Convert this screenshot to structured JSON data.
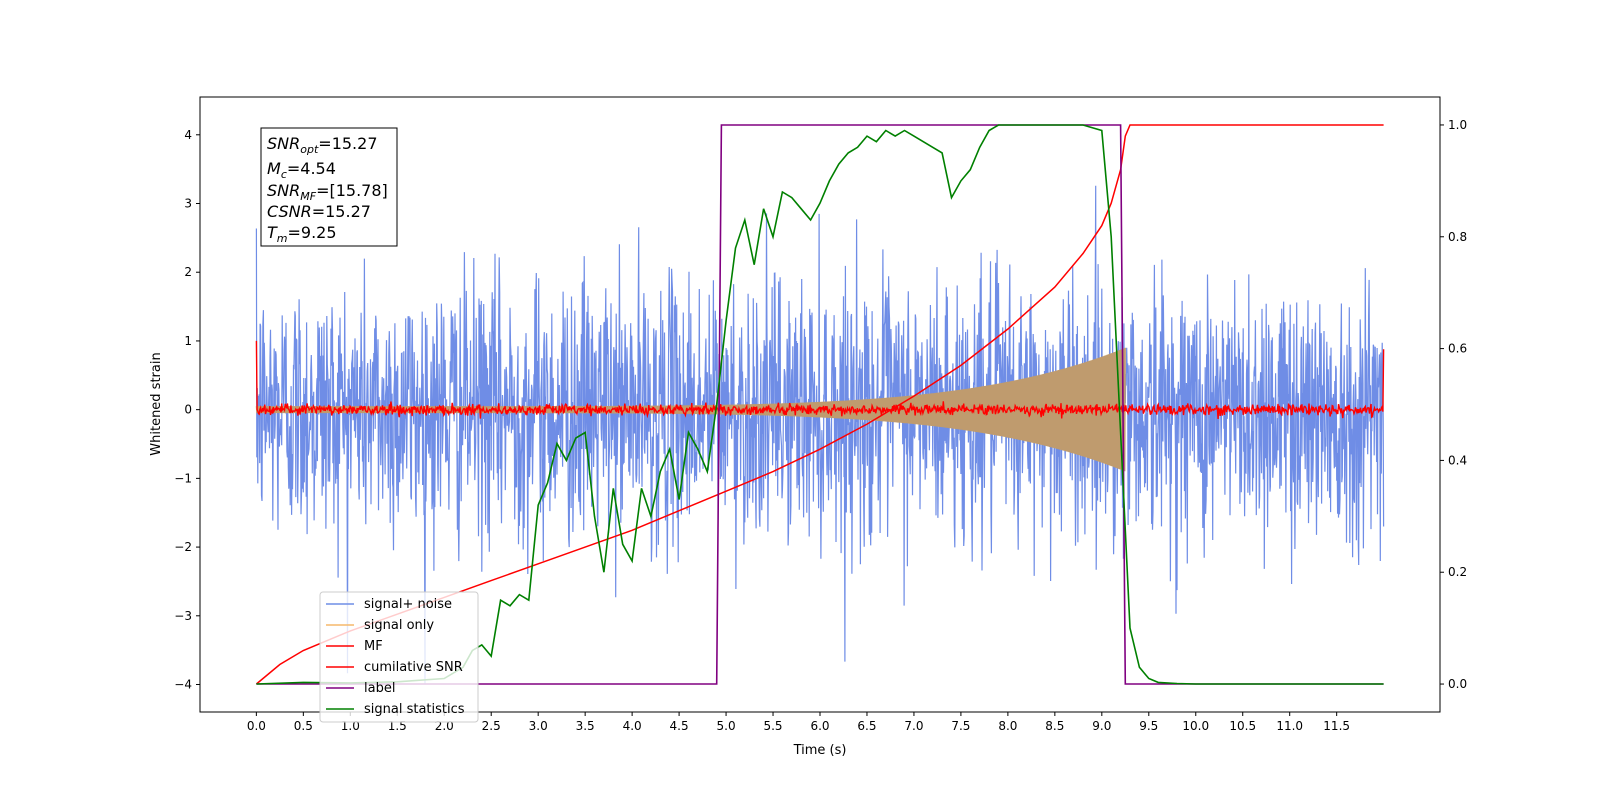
{
  "chart_data": {
    "type": "line",
    "xlabel": "Time (s)",
    "ylabel": "Whitened strain",
    "xlim": [
      -0.6,
      12.6
    ],
    "ylim": [
      -4.4,
      4.55
    ],
    "y2lim": [
      -0.05,
      1.05
    ],
    "x_ticks": [
      "0.0",
      "0.5",
      "1.0",
      "1.5",
      "2.0",
      "2.5",
      "3.0",
      "3.5",
      "4.0",
      "4.5",
      "5.0",
      "5.5",
      "6.0",
      "6.5",
      "7.0",
      "7.5",
      "8.0",
      "8.5",
      "9.0",
      "9.5",
      "10.0",
      "10.5",
      "11.0",
      "11.5"
    ],
    "y_ticks": [
      "4",
      "3",
      "2",
      "1",
      "0",
      "−1",
      "−2",
      "−3",
      "−4"
    ],
    "y2_ticks": [
      "1.0",
      "0.8",
      "0.6",
      "0.4",
      "0.2",
      "0.0"
    ],
    "grid": false,
    "legend_position": "lower-left",
    "annotation": {
      "snr_opt": {
        "base": "SNR",
        "sub": "opt",
        "value": "=15.27"
      },
      "mc": {
        "base": "M",
        "sub": "c",
        "value": "=4.54"
      },
      "snr_mf": {
        "base": "SNR",
        "sub": "MF",
        "value": "=[15.78]"
      },
      "csnr": {
        "base": "CSNR",
        "sub": "",
        "value": "=15.27"
      },
      "tm": {
        "base": "T",
        "sub": "m",
        "value": "=9.25"
      }
    },
    "series": [
      {
        "name": "signal+ noise",
        "color": "#6f8de6",
        "axis": "left",
        "style": "noise",
        "x_range": [
          0.0,
          12.0
        ],
        "std": 1.0,
        "peak_abs": 4.0
      },
      {
        "name": "signal only",
        "color": "#f5b96c",
        "axis": "left",
        "style": "chirp",
        "x_range": [
          0.0,
          9.25
        ],
        "amplitude_start": 0.05,
        "amplitude_end": 0.9
      },
      {
        "name": "MF",
        "color": "#ff0000",
        "axis": "left",
        "style": "noise",
        "x_range": [
          0.0,
          12.0
        ],
        "std": 0.04,
        "edge_value": 1.0
      },
      {
        "name": "cumilative SNR",
        "color": "#ff0000",
        "axis": "right",
        "x": [
          0.0,
          0.25,
          0.5,
          1.0,
          1.5,
          2.0,
          2.5,
          3.0,
          3.5,
          4.0,
          4.5,
          5.0,
          5.5,
          6.0,
          6.5,
          7.0,
          7.5,
          8.0,
          8.5,
          8.8,
          9.0,
          9.1,
          9.2,
          9.25,
          9.3,
          12.0
        ],
        "y": [
          0.0,
          0.035,
          0.06,
          0.095,
          0.125,
          0.155,
          0.185,
          0.215,
          0.245,
          0.275,
          0.31,
          0.345,
          0.38,
          0.42,
          0.465,
          0.515,
          0.57,
          0.635,
          0.71,
          0.77,
          0.82,
          0.86,
          0.92,
          0.98,
          1.0,
          1.0
        ]
      },
      {
        "name": "label",
        "color": "#800080",
        "axis": "right",
        "x": [
          0.0,
          4.9,
          4.95,
          9.2,
          9.25,
          12.0
        ],
        "y": [
          0.0,
          0.0,
          1.0,
          1.0,
          0.0,
          0.0
        ]
      },
      {
        "name": "signal statistics",
        "color": "#008000",
        "axis": "right",
        "x": [
          0.0,
          0.5,
          1.0,
          1.5,
          2.0,
          2.2,
          2.3,
          2.4,
          2.5,
          2.6,
          2.7,
          2.8,
          2.9,
          3.0,
          3.1,
          3.2,
          3.3,
          3.4,
          3.5,
          3.6,
          3.7,
          3.8,
          3.9,
          4.0,
          4.1,
          4.2,
          4.3,
          4.4,
          4.5,
          4.6,
          4.7,
          4.8,
          4.9,
          5.0,
          5.1,
          5.2,
          5.3,
          5.4,
          5.5,
          5.6,
          5.7,
          5.8,
          5.9,
          6.0,
          6.1,
          6.2,
          6.3,
          6.4,
          6.5,
          6.6,
          6.7,
          6.8,
          6.9,
          7.0,
          7.1,
          7.2,
          7.3,
          7.4,
          7.5,
          7.6,
          7.7,
          7.8,
          7.9,
          8.0,
          8.5,
          8.8,
          9.0,
          9.1,
          9.2,
          9.3,
          9.4,
          9.5,
          9.6,
          9.8,
          10.0,
          11.0,
          12.0
        ],
        "y": [
          0.0,
          0.003,
          0.002,
          0.004,
          0.01,
          0.03,
          0.06,
          0.07,
          0.05,
          0.15,
          0.14,
          0.16,
          0.15,
          0.32,
          0.36,
          0.43,
          0.4,
          0.44,
          0.45,
          0.3,
          0.2,
          0.35,
          0.25,
          0.22,
          0.35,
          0.3,
          0.38,
          0.42,
          0.33,
          0.45,
          0.42,
          0.38,
          0.5,
          0.65,
          0.78,
          0.83,
          0.75,
          0.85,
          0.8,
          0.88,
          0.87,
          0.85,
          0.83,
          0.86,
          0.9,
          0.93,
          0.95,
          0.96,
          0.98,
          0.97,
          0.99,
          0.98,
          0.99,
          0.98,
          0.97,
          0.96,
          0.95,
          0.87,
          0.9,
          0.92,
          0.96,
          0.99,
          1.0,
          1.0,
          1.0,
          1.0,
          0.99,
          0.8,
          0.45,
          0.1,
          0.03,
          0.01,
          0.003,
          0.001,
          0.0,
          0.0,
          0.0
        ]
      }
    ]
  }
}
